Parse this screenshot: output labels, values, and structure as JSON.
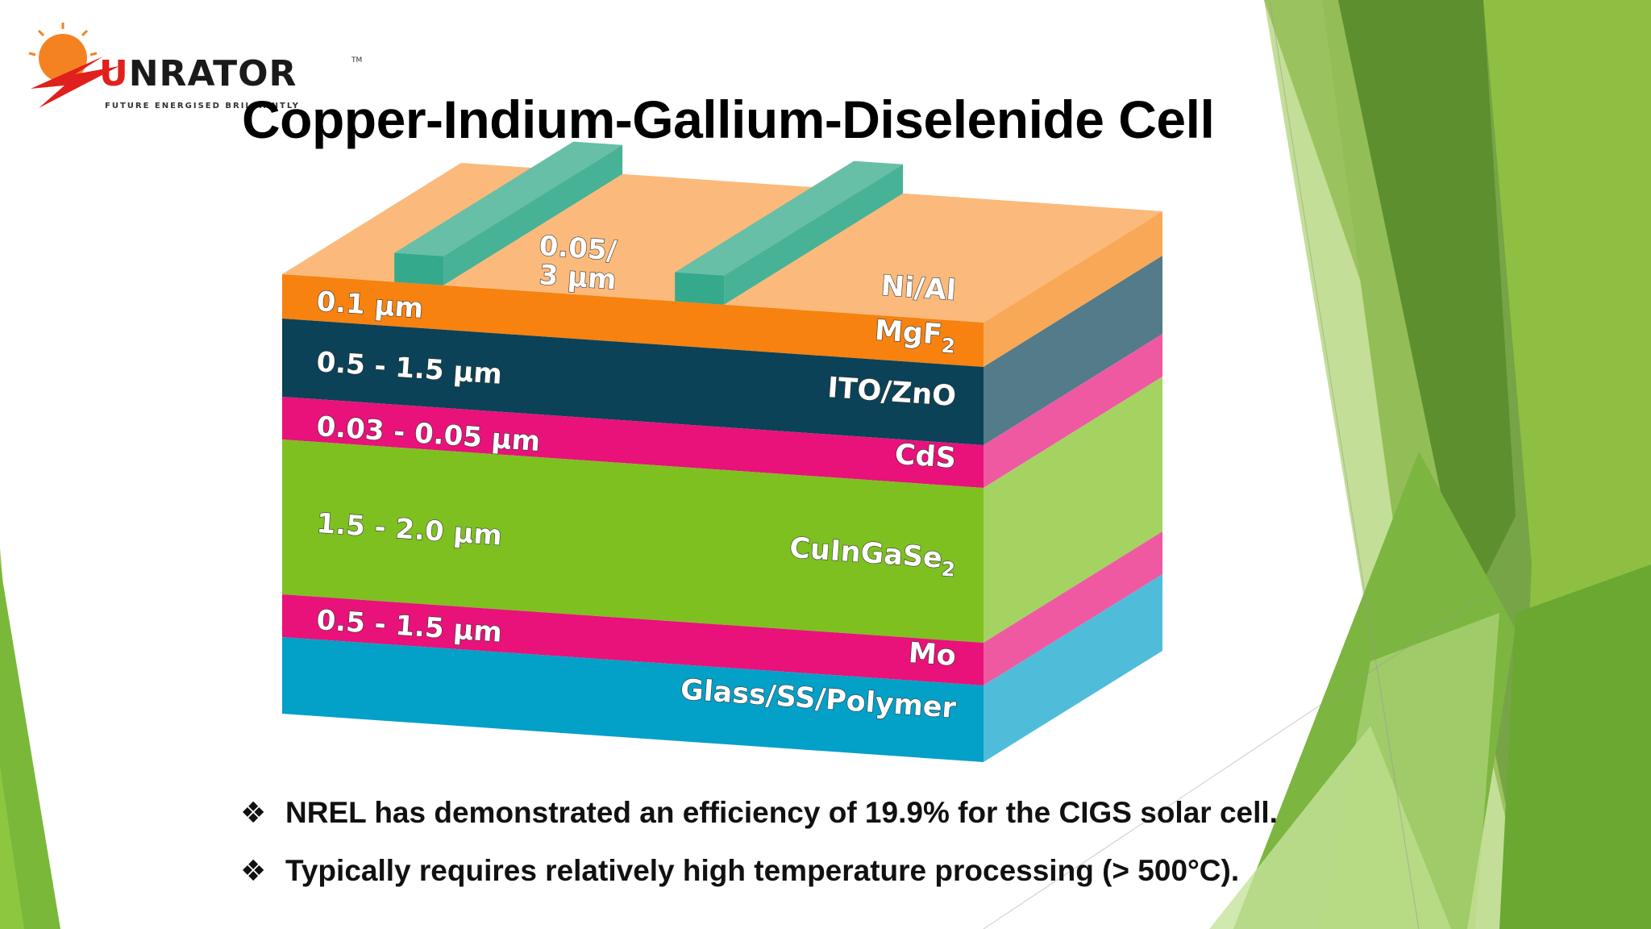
{
  "logo": {
    "brand_prefix": "U",
    "brand_rest": "NRATOR",
    "tm": "TM",
    "tagline": "FUTURE ENERGISED BRILLIANTLY"
  },
  "title": "Copper-Indium-Gallium-Diselenide Cell",
  "diagram": {
    "contacts": {
      "thickness": "0.05/",
      "thickness_unit": "3 µm",
      "material": "Ni/Al"
    },
    "layers": [
      {
        "thickness": "0.1 µm",
        "material": "MgF",
        "sub": "2",
        "color": "#f7820f"
      },
      {
        "thickness": "0.5 - 1.5 µm",
        "material": "ITO/ZnO",
        "sub": "",
        "color": "#0b4257"
      },
      {
        "thickness": "0.03 - 0.05 µm",
        "material": "CdS",
        "sub": "",
        "color": "#e8127a"
      },
      {
        "thickness": "1.5 - 2.0 µm",
        "material": "CuInGaSe",
        "sub": "2",
        "color": "#7dc01f"
      },
      {
        "thickness": "0.5 - 1.5 µm",
        "material": "Mo",
        "sub": "",
        "color": "#e8127a"
      },
      {
        "thickness": "",
        "material": "Glass/SS/Polymer",
        "sub": "",
        "color": "#03a0c8"
      }
    ],
    "contact_color": "#34a98b"
  },
  "bullets": [
    {
      "icon": "four-diamond-bullet-icon",
      "mark": "❖",
      "text": "NREL has demonstrated an efficiency of 19.9% for the CIGS solar cell."
    },
    {
      "icon": "four-diamond-bullet-icon",
      "mark": "❖",
      "text": "Typically requires relatively high temperature processing (> 500°C)."
    }
  ],
  "theme": {
    "green_light": "#8dc63f",
    "green_dark": "#4f8f22"
  }
}
